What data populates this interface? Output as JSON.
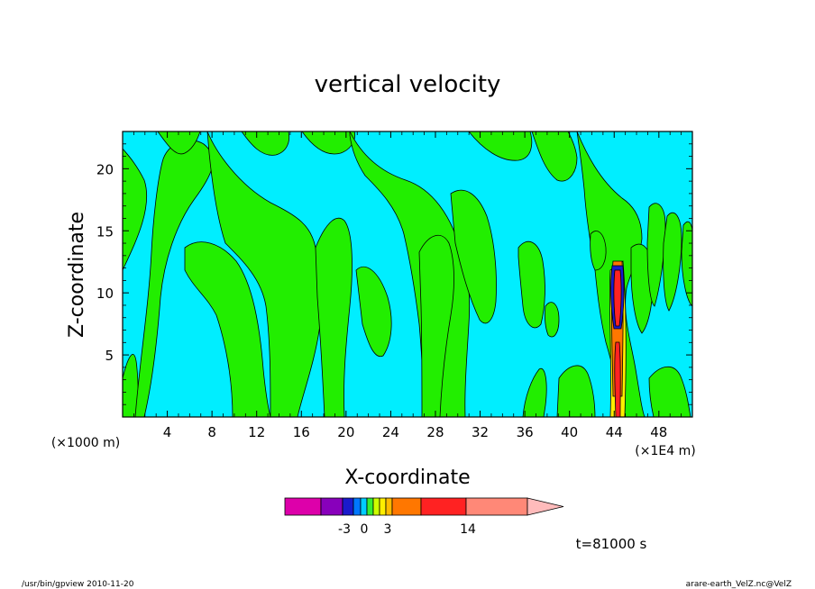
{
  "chart_data": {
    "type": "heatmap",
    "title": "vertical velocity",
    "xlabel": "X-coordinate",
    "ylabel": "Z-coordinate",
    "x_unit_left": "(×1000 m)",
    "x_unit_right": "(×1E4 m)",
    "xlim": [
      0,
      51
    ],
    "ylim": [
      0,
      23
    ],
    "x_ticks": [
      "4",
      "8",
      "12",
      "16",
      "20",
      "24",
      "28",
      "32",
      "36",
      "40",
      "44",
      "48"
    ],
    "y_ticks": [
      "5",
      "10",
      "15",
      "20"
    ],
    "colorbar": {
      "labels": [
        "-3",
        "0",
        "3",
        "14"
      ],
      "colors": [
        "#dd00aa",
        "#8800bb",
        "#1a1acc",
        "#0077ff",
        "#00ccff",
        "#33ee33",
        "#ccff00",
        "#ffee00",
        "#ffbb00",
        "#ff7700",
        "#ff2222",
        "#ff8877",
        "#ffbbbb"
      ]
    },
    "background_color": "#00eeff",
    "positive_color": "#22ee00",
    "time_label": "t=81000 s"
  },
  "footer": {
    "left": "/usr/bin/gpview   2010-11-20",
    "right": "arare-earth_VelZ.nc@VelZ"
  }
}
